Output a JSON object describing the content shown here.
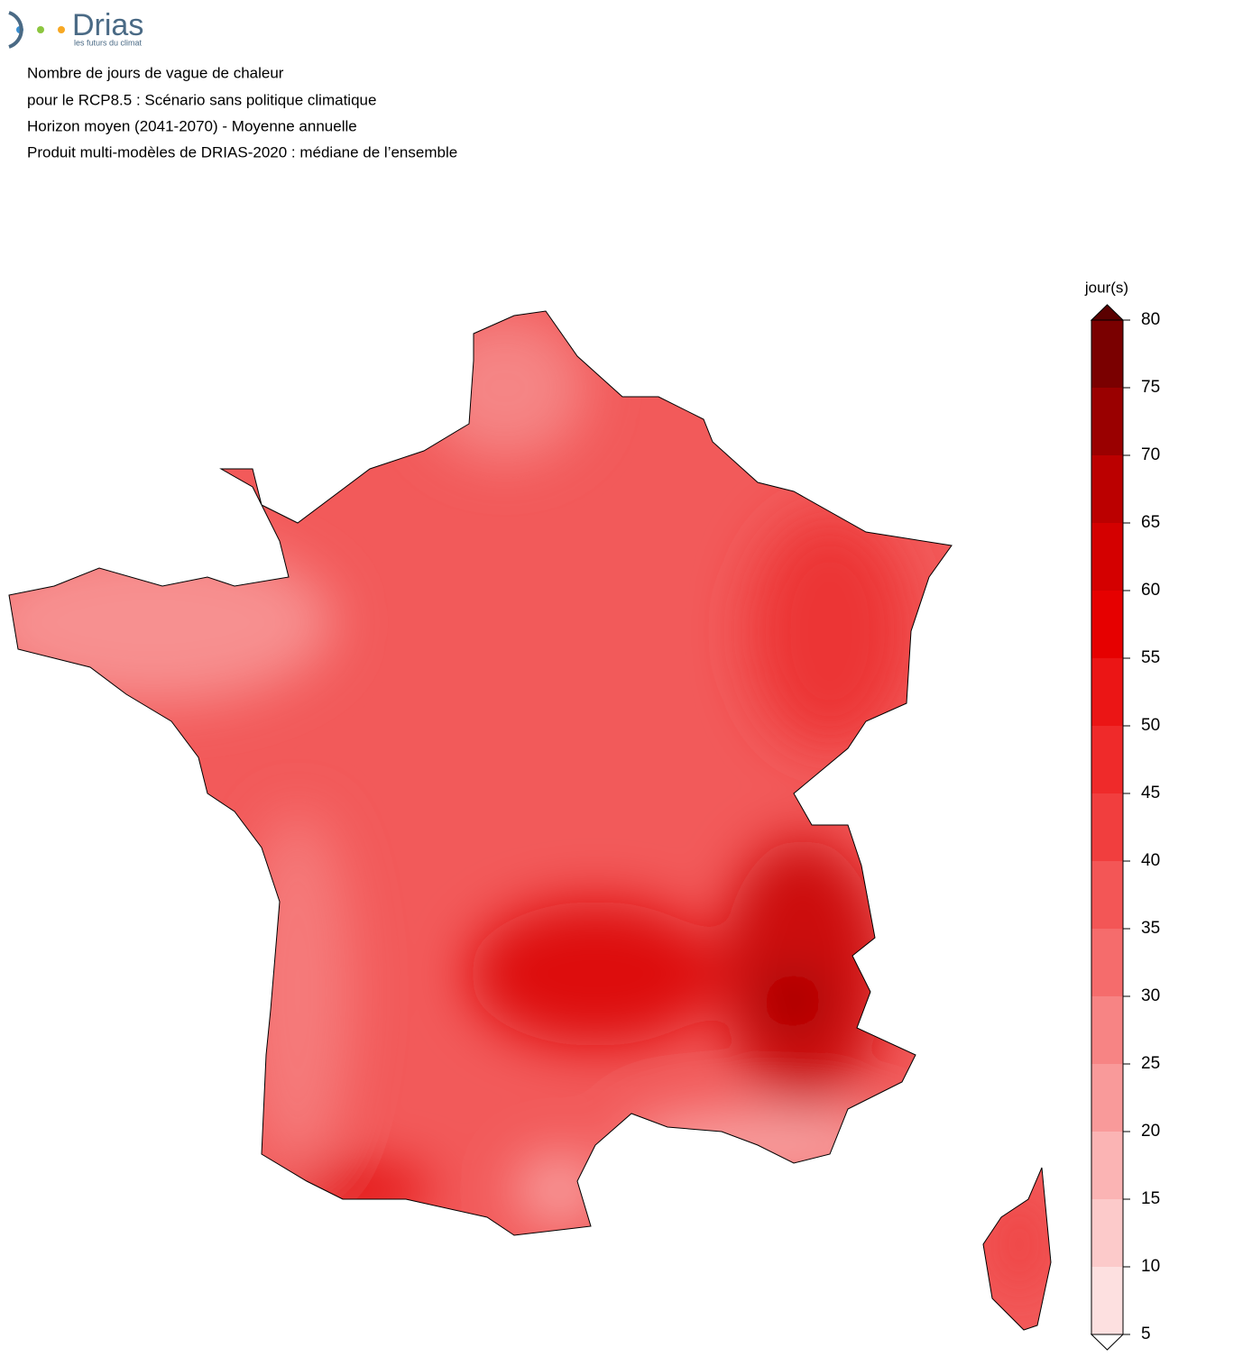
{
  "logo": {
    "name": "Drias",
    "tagline": "les futurs du climat"
  },
  "header": {
    "lines": [
      "Nombre de jours de vague de chaleur",
      "pour le RCP8.5 : Scénario sans politique climatique",
      "Horizon moyen (2041-2070) - Moyenne annuelle",
      "Produit multi-modèles de DRIAS-2020 : médiane de l’ensemble"
    ]
  },
  "colorbar": {
    "title": "jour(s)",
    "lim": [
      5,
      80
    ],
    "ticks": [
      5,
      10,
      15,
      20,
      25,
      30,
      35,
      40,
      45,
      50,
      55,
      60,
      65,
      70,
      75,
      80
    ],
    "colors": [
      "#fde0e0",
      "#fccaca",
      "#fbb4b4",
      "#f99a9a",
      "#f78484",
      "#f56c6c",
      "#f35656",
      "#f13e3e",
      "#ef2a2a",
      "#eb1515",
      "#e60000",
      "#d40000",
      "#bb0000",
      "#9a0000",
      "#7a0000"
    ],
    "over_color": "#5a0000",
    "under_color": "#ffffff"
  }
}
